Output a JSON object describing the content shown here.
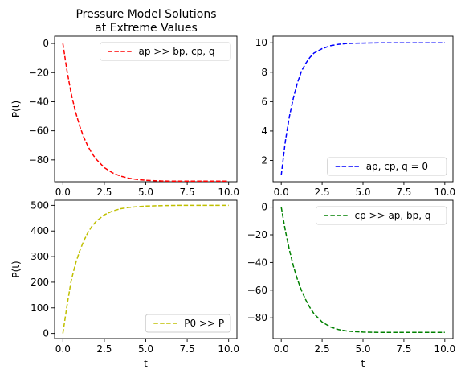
{
  "figure": {
    "title_lines": [
      "Pressure Model Solutions",
      "at Extreme Values"
    ]
  },
  "chart_data": [
    {
      "type": "line",
      "title": "Pressure Model Solutions\nat Extreme Values",
      "xlabel": "",
      "ylabel": "P(t)",
      "xlim": [
        -0.5,
        10.5
      ],
      "ylim": [
        -95,
        5
      ],
      "xticks": [
        0,
        2.5,
        5,
        7.5,
        10
      ],
      "xtick_labels": [
        "0.0",
        "2.5",
        "5.0",
        "7.5",
        "10.0"
      ],
      "yticks": [
        0,
        -20,
        -40,
        -60,
        -80
      ],
      "ytick_labels": [
        "0",
        "−20",
        "−40",
        "−60",
        "−80"
      ],
      "legend_position": "upper-right",
      "series": [
        {
          "name": "ap >> bp, cp, q",
          "color": "#ff0000",
          "style": "dashed",
          "x": [
            0,
            0.25,
            0.5,
            0.75,
            1,
            1.25,
            1.5,
            1.75,
            2,
            2.5,
            3,
            3.5,
            4,
            4.5,
            5,
            6,
            7,
            8,
            9,
            10
          ],
          "y": [
            0,
            -19.0,
            -34.3,
            -46.5,
            -56.3,
            -64.1,
            -70.4,
            -75.4,
            -79.4,
            -85.3,
            -88.9,
            -91.2,
            -92.6,
            -93.5,
            -94.0,
            -94.5,
            -94.6,
            -94.6,
            -94.6,
            -94.6
          ]
        }
      ]
    },
    {
      "type": "line",
      "title": "",
      "xlabel": "",
      "ylabel": "",
      "xlim": [
        -0.5,
        10.5
      ],
      "ylim": [
        0.55,
        10.45
      ],
      "xticks": [
        0,
        2.5,
        5,
        7.5,
        10
      ],
      "xtick_labels": [
        "0.0",
        "2.5",
        "5.0",
        "7.5",
        "10.0"
      ],
      "yticks": [
        2,
        4,
        6,
        8,
        10
      ],
      "ytick_labels": [
        "2",
        "4",
        "6",
        "8",
        "10"
      ],
      "legend_position": "lower-right",
      "series": [
        {
          "name": "ap, cp, q = 0",
          "color": "#0000ff",
          "style": "dashed",
          "x": [
            0,
            0.25,
            0.5,
            0.75,
            1,
            1.25,
            1.5,
            1.75,
            2,
            2.5,
            3,
            3.5,
            4,
            4.5,
            5,
            6,
            7,
            8,
            9,
            10
          ],
          "y": [
            1.0,
            3.3,
            5.0,
            6.3,
            7.3,
            8.1,
            8.6,
            9.0,
            9.3,
            9.6,
            9.8,
            9.9,
            9.95,
            9.97,
            9.98,
            10.0,
            10.0,
            10.0,
            10.0,
            10.0
          ]
        }
      ]
    },
    {
      "type": "line",
      "title": "",
      "xlabel": "t",
      "ylabel": "P(t)",
      "xlim": [
        -0.5,
        10.5
      ],
      "ylim": [
        -20,
        520
      ],
      "xticks": [
        0,
        2.5,
        5,
        7.5,
        10
      ],
      "xtick_labels": [
        "0.0",
        "2.5",
        "5.0",
        "7.5",
        "10.0"
      ],
      "yticks": [
        0,
        100,
        200,
        300,
        400,
        500
      ],
      "ytick_labels": [
        "0",
        "100",
        "200",
        "300",
        "400",
        "500"
      ],
      "legend_position": "lower-right",
      "series": [
        {
          "name": "P0 >> P",
          "color": "#bfbf00",
          "style": "dashed",
          "x": [
            0,
            0.25,
            0.5,
            0.75,
            1,
            1.25,
            1.5,
            1.75,
            2,
            2.5,
            3,
            3.5,
            4,
            4.5,
            5,
            6,
            7,
            8,
            9,
            10
          ],
          "y": [
            0,
            110,
            205,
            270,
            320,
            360,
            393,
            418,
            437,
            463,
            478,
            487,
            492,
            495,
            497,
            499,
            500,
            500,
            500,
            500
          ]
        }
      ]
    },
    {
      "type": "line",
      "title": "",
      "xlabel": "t",
      "ylabel": "",
      "xlim": [
        -0.5,
        10.5
      ],
      "ylim": [
        -95,
        5
      ],
      "xticks": [
        0,
        2.5,
        5,
        7.5,
        10
      ],
      "xtick_labels": [
        "0.0",
        "2.5",
        "5.0",
        "7.5",
        "10.0"
      ],
      "yticks": [
        0,
        -20,
        -40,
        -60,
        -80
      ],
      "ytick_labels": [
        "0",
        "−20",
        "−40",
        "−60",
        "−80"
      ],
      "legend_position": "upper-right",
      "series": [
        {
          "name": "cp >> ap, bp, q",
          "color": "#008000",
          "style": "dashed",
          "x": [
            0,
            0.25,
            0.5,
            0.75,
            1,
            1.25,
            1.5,
            1.75,
            2,
            2.5,
            3,
            3.5,
            4,
            4.5,
            5,
            6,
            7,
            8,
            9,
            10
          ],
          "y": [
            0,
            -17.0,
            -31.0,
            -43.0,
            -52.5,
            -60.5,
            -67.0,
            -72.5,
            -77.0,
            -83.0,
            -86.5,
            -88.5,
            -89.5,
            -90.0,
            -90.3,
            -90.5,
            -90.5,
            -90.5,
            -90.5,
            -90.5
          ]
        }
      ]
    }
  ]
}
